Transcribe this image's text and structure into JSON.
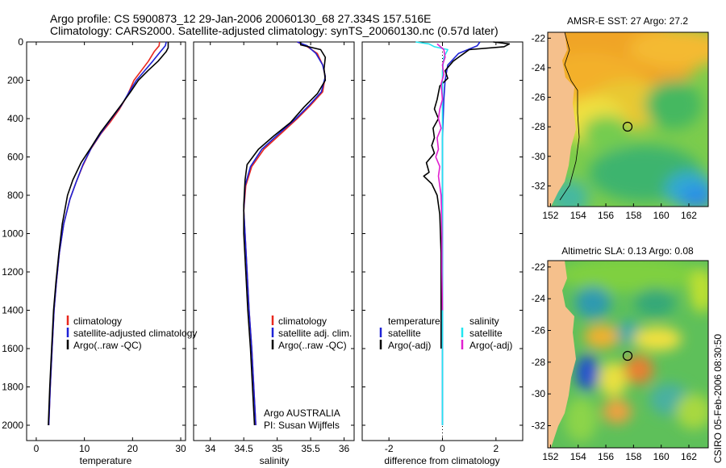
{
  "header": {
    "title_line1": "Argo profile: CS 5900873_12 29-Jan-2006 20060130_68 27.334S 157.516E",
    "title_line2": "Climatology: CARS2000. Satellite-adjusted climatology: synTS_20060130.nc (0.57d later)"
  },
  "side_label": "CSIRO 05-Feb-2006 08:30:50",
  "colors": {
    "clim": "#e8281e",
    "sat": "#1e22d6",
    "argo": "#000000",
    "sal_sat": "#22e6f0",
    "sal_argo": "#e020d0",
    "land": "#f5c08c"
  },
  "chart_data": [
    {
      "type": "line",
      "id": "temperature",
      "xlabel": "temperature",
      "xlim": [
        -2,
        31
      ],
      "ylim": [
        0,
        2080
      ],
      "xticks": [
        0,
        10,
        20,
        30
      ],
      "yticks": [
        0,
        200,
        400,
        600,
        800,
        1000,
        1200,
        1400,
        1600,
        1800,
        2000
      ],
      "legend": [
        "climatology",
        "satellite-adjusted climatology",
        "Argo(..raw -QC)"
      ],
      "series": [
        {
          "name": "climatology",
          "color": "#e8281e",
          "points": [
            [
              25.6,
              0
            ],
            [
              25.5,
              20
            ],
            [
              24.5,
              50
            ],
            [
              23.3,
              100
            ],
            [
              21.8,
              150
            ],
            [
              20.3,
              200
            ],
            [
              18.9,
              280
            ],
            [
              17.3,
              350
            ],
            [
              15.3,
              420
            ],
            [
              13.4,
              480
            ],
            [
              11.3,
              560
            ],
            [
              9.6,
              650
            ],
            [
              8.3,
              730
            ],
            [
              7.0,
              820
            ],
            [
              5.7,
              950
            ],
            [
              4.8,
              1100
            ],
            [
              4.2,
              1250
            ],
            [
              3.7,
              1400
            ],
            [
              3.3,
              1600
            ],
            [
              2.9,
              1800
            ],
            [
              2.6,
              2000
            ]
          ]
        },
        {
          "name": "satellite-adjusted climatology",
          "color": "#1e22d6",
          "points": [
            [
              27.0,
              0
            ],
            [
              26.8,
              20
            ],
            [
              25.8,
              50
            ],
            [
              24.2,
              100
            ],
            [
              22.5,
              150
            ],
            [
              20.8,
              200
            ],
            [
              19.3,
              260
            ],
            [
              17.7,
              330
            ],
            [
              15.6,
              400
            ],
            [
              13.6,
              470
            ],
            [
              11.5,
              550
            ],
            [
              9.7,
              640
            ],
            [
              8.3,
              730
            ],
            [
              7.0,
              820
            ],
            [
              5.7,
              950
            ],
            [
              4.8,
              1100
            ],
            [
              4.2,
              1250
            ],
            [
              3.7,
              1400
            ],
            [
              3.3,
              1600
            ],
            [
              2.9,
              1800
            ],
            [
              2.6,
              2000
            ]
          ]
        },
        {
          "name": "Argo(..raw -QC)",
          "color": "#000000",
          "points": [
            [
              27.4,
              0
            ],
            [
              27.4,
              30
            ],
            [
              27.0,
              50
            ],
            [
              25.3,
              100
            ],
            [
              23.2,
              150
            ],
            [
              21.2,
              200
            ],
            [
              19.6,
              260
            ],
            [
              17.6,
              330
            ],
            [
              15.5,
              400
            ],
            [
              13.4,
              470
            ],
            [
              11.4,
              550
            ],
            [
              9.3,
              630
            ],
            [
              7.6,
              720
            ],
            [
              6.5,
              800
            ],
            [
              5.4,
              950
            ],
            [
              4.7,
              1100
            ],
            [
              4.1,
              1250
            ],
            [
              3.6,
              1400
            ],
            [
              3.2,
              1600
            ],
            [
              2.8,
              1800
            ],
            [
              2.5,
              2000
            ]
          ]
        }
      ]
    },
    {
      "type": "line",
      "id": "salinity",
      "xlabel": "salinity",
      "xlim": [
        33.75,
        36.15
      ],
      "ylim": [
        0,
        2080
      ],
      "xticks": [
        34,
        34.5,
        35,
        35.5,
        36
      ],
      "legend": [
        "climatology",
        "satellite adj. clim.",
        "Argo(..raw -QC)"
      ],
      "annotations": [
        "Argo AUSTRALIA",
        "PI: Susan Wijffels"
      ],
      "series": [
        {
          "name": "climatology",
          "color": "#e8281e",
          "points": [
            [
              35.3,
              0
            ],
            [
              35.45,
              25
            ],
            [
              35.6,
              60
            ],
            [
              35.68,
              120
            ],
            [
              35.72,
              180
            ],
            [
              35.68,
              260
            ],
            [
              35.5,
              330
            ],
            [
              35.3,
              400
            ],
            [
              35.05,
              480
            ],
            [
              34.8,
              560
            ],
            [
              34.62,
              650
            ],
            [
              34.53,
              750
            ],
            [
              34.5,
              880
            ],
            [
              34.52,
              1000
            ],
            [
              34.55,
              1200
            ],
            [
              34.58,
              1400
            ],
            [
              34.62,
              1600
            ],
            [
              34.65,
              1800
            ],
            [
              34.68,
              2000
            ]
          ]
        },
        {
          "name": "satellite adj. clim.",
          "color": "#1e22d6",
          "points": [
            [
              35.3,
              0
            ],
            [
              35.45,
              20
            ],
            [
              35.58,
              60
            ],
            [
              35.68,
              120
            ],
            [
              35.72,
              180
            ],
            [
              35.66,
              260
            ],
            [
              35.48,
              330
            ],
            [
              35.28,
              400
            ],
            [
              35.02,
              480
            ],
            [
              34.77,
              560
            ],
            [
              34.6,
              650
            ],
            [
              34.52,
              750
            ],
            [
              34.5,
              880
            ],
            [
              34.52,
              1000
            ],
            [
              34.55,
              1200
            ],
            [
              34.58,
              1400
            ],
            [
              34.62,
              1600
            ],
            [
              34.65,
              1800
            ],
            [
              34.68,
              2000
            ]
          ]
        },
        {
          "name": "Argo(..raw -QC)",
          "color": "#000000",
          "points": [
            [
              35.35,
              0
            ],
            [
              35.35,
              15
            ],
            [
              35.65,
              40
            ],
            [
              35.72,
              80
            ],
            [
              35.7,
              140
            ],
            [
              35.72,
              200
            ],
            [
              35.6,
              270
            ],
            [
              35.4,
              340
            ],
            [
              35.2,
              420
            ],
            [
              34.95,
              490
            ],
            [
              34.72,
              560
            ],
            [
              34.55,
              640
            ],
            [
              34.52,
              720
            ],
            [
              34.5,
              850
            ],
            [
              34.5,
              1000
            ],
            [
              34.53,
              1200
            ],
            [
              34.56,
              1400
            ],
            [
              34.6,
              1600
            ],
            [
              34.63,
              1800
            ],
            [
              34.66,
              2000
            ]
          ]
        }
      ]
    },
    {
      "type": "line",
      "id": "difference",
      "xlabel": "difference from climatology",
      "xlim": [
        -3.0,
        3.0
      ],
      "ylim": [
        0,
        2080
      ],
      "xticks": [
        -2,
        0,
        2
      ],
      "legend_left_title": "temperature",
      "legend_right_title": "salinity",
      "legend": [
        "satellite",
        "Argo(-adj)",
        "satellite",
        "Argo(-adj)"
      ],
      "series": [
        {
          "name": "temperature satellite",
          "color": "#1e22d6",
          "points": [
            [
              1.4,
              0
            ],
            [
              1.3,
              20
            ],
            [
              0.6,
              60
            ],
            [
              0.2,
              120
            ],
            [
              0.1,
              200
            ],
            [
              0.05,
              300
            ],
            [
              0.0,
              500
            ],
            [
              0.0,
              2000
            ]
          ]
        },
        {
          "name": "temperature Argo(-adj)",
          "color": "#000000",
          "points": [
            [
              1.9,
              0
            ],
            [
              2.5,
              10
            ],
            [
              2.3,
              25
            ],
            [
              1.0,
              40
            ],
            [
              0.8,
              60
            ],
            [
              0.6,
              80
            ],
            [
              0.4,
              100
            ],
            [
              0.1,
              150
            ],
            [
              0.2,
              190
            ],
            [
              -0.1,
              230
            ],
            [
              -0.2,
              300
            ],
            [
              -0.3,
              350
            ],
            [
              -0.15,
              400
            ],
            [
              -0.35,
              450
            ],
            [
              -0.3,
              500
            ],
            [
              -0.4,
              540
            ],
            [
              -0.3,
              580
            ],
            [
              -0.6,
              630
            ],
            [
              -0.5,
              680
            ],
            [
              -0.7,
              700
            ],
            [
              -0.4,
              740
            ],
            [
              -0.2,
              800
            ],
            [
              -0.1,
              900
            ],
            [
              -0.05,
              1100
            ],
            [
              -0.05,
              1300
            ],
            [
              -0.05,
              1500
            ],
            [
              -0.05,
              1600
            ]
          ]
        },
        {
          "name": "salinity satellite",
          "color": "#22e6f0",
          "points": [
            [
              -1.0,
              0
            ],
            [
              -0.5,
              10
            ],
            [
              -0.3,
              25
            ],
            [
              0.2,
              40
            ],
            [
              0.05,
              80
            ],
            [
              0.0,
              150
            ],
            [
              0.0,
              300
            ],
            [
              0.0,
              2000
            ]
          ]
        },
        {
          "name": "salinity Argo(-adj)",
          "color": "#e020d0",
          "points": [
            [
              -0.2,
              10
            ],
            [
              0.05,
              40
            ],
            [
              0.1,
              80
            ],
            [
              0.0,
              120
            ],
            [
              0.05,
              170
            ],
            [
              -0.05,
              220
            ],
            [
              0.0,
              300
            ],
            [
              -0.1,
              350
            ],
            [
              -0.15,
              400
            ],
            [
              -0.05,
              450
            ],
            [
              -0.2,
              500
            ],
            [
              -0.15,
              560
            ],
            [
              -0.25,
              600
            ],
            [
              -0.1,
              650
            ],
            [
              -0.15,
              700
            ],
            [
              -0.05,
              800
            ],
            [
              -0.02,
              1000
            ],
            [
              -0.02,
              1200
            ],
            [
              0.0,
              1400
            ]
          ]
        }
      ]
    },
    {
      "type": "heatmap",
      "id": "sst-map",
      "title": "AMSR-E SST: 27 Argo: 27.2",
      "xlim": [
        151.8,
        163.4
      ],
      "ylim": [
        -33.4,
        -21.6
      ],
      "xticks": [
        152,
        154,
        156,
        158,
        160,
        162
      ],
      "yticks": [
        -22,
        -24,
        -26,
        -28,
        -30,
        -32
      ],
      "marker": [
        157.5,
        -27.3
      ]
    },
    {
      "type": "heatmap",
      "id": "sla-map",
      "title": "Altimetric SLA: 0.13 Argo: 0.08",
      "xlim": [
        151.8,
        163.4
      ],
      "ylim": [
        -33.4,
        -21.6
      ],
      "xticks": [
        152,
        154,
        156,
        158,
        160,
        162
      ],
      "yticks": [
        -22,
        -24,
        -26,
        -28,
        -30,
        -32
      ],
      "marker": [
        157.5,
        -27.3
      ]
    }
  ]
}
